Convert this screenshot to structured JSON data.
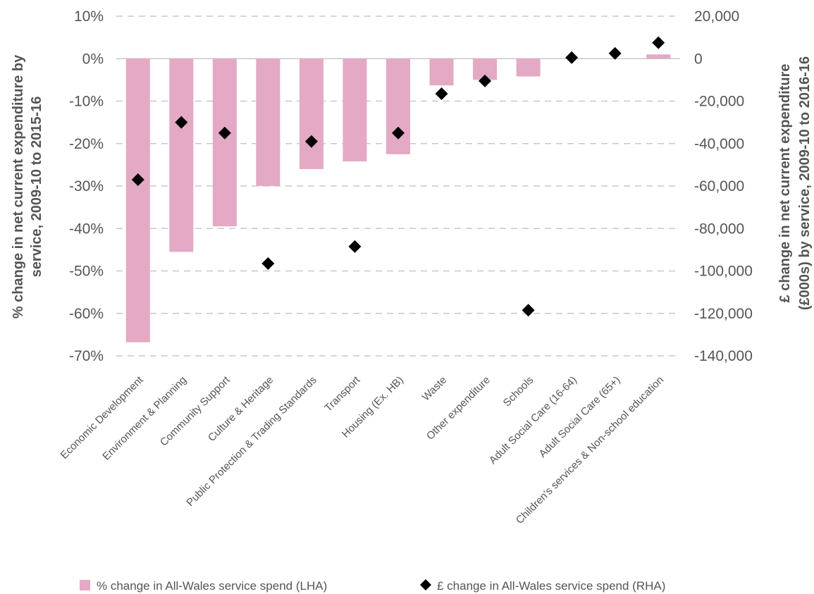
{
  "chart_data": {
    "type": "bar",
    "categories": [
      "Economic Development",
      "Environment & Planning",
      "Community Support",
      "Culture & Heritage",
      "Public Protection & Trading Standards",
      "Transport",
      "Housing (Ex. HB)",
      "Waste",
      "Other expenditure",
      "Schools",
      "Adult Social Care (16-64)",
      "Adult Social Care (65+)",
      "Children's services & Non-school education"
    ],
    "series": [
      {
        "name": "% change in All-Wales service spend (LHA)",
        "type": "bar",
        "axis": "left",
        "color": "#e3a9c5",
        "values": [
          -66.8,
          -45.5,
          -39.5,
          -30.0,
          -26.0,
          -24.2,
          -22.5,
          -6.3,
          -5.0,
          -4.2,
          0.0,
          0.0,
          1.0
        ]
      },
      {
        "name": "£ change in All-Wales service spend (RHA)",
        "type": "scatter",
        "axis": "right",
        "color": "#000000",
        "marker": "diamond",
        "values": [
          -57000,
          -30000,
          -35000,
          -96500,
          -39000,
          -88500,
          -35000,
          -16500,
          -10500,
          -118500,
          500,
          2500,
          7500
        ]
      }
    ],
    "ylabel": "% change in net current expenditure by service, 2009-10 to 2015-16",
    "y2label": "£ change in net current expenditure (£000s) by service, 2009-10 to 2016-16",
    "ylim": [
      -70,
      10
    ],
    "y2lim": [
      -140000,
      20000
    ],
    "yticks": [
      "10%",
      "0%",
      "-10%",
      "-20%",
      "-30%",
      "-40%",
      "-50%",
      "-60%",
      "-70%"
    ],
    "y2ticks": [
      "20,000",
      "0",
      "-20,000",
      "-40,000",
      "-60,000",
      "-80,000",
      "-100,000",
      "-120,000",
      "-140,000"
    ],
    "grid": true,
    "legend_position": "bottom"
  }
}
